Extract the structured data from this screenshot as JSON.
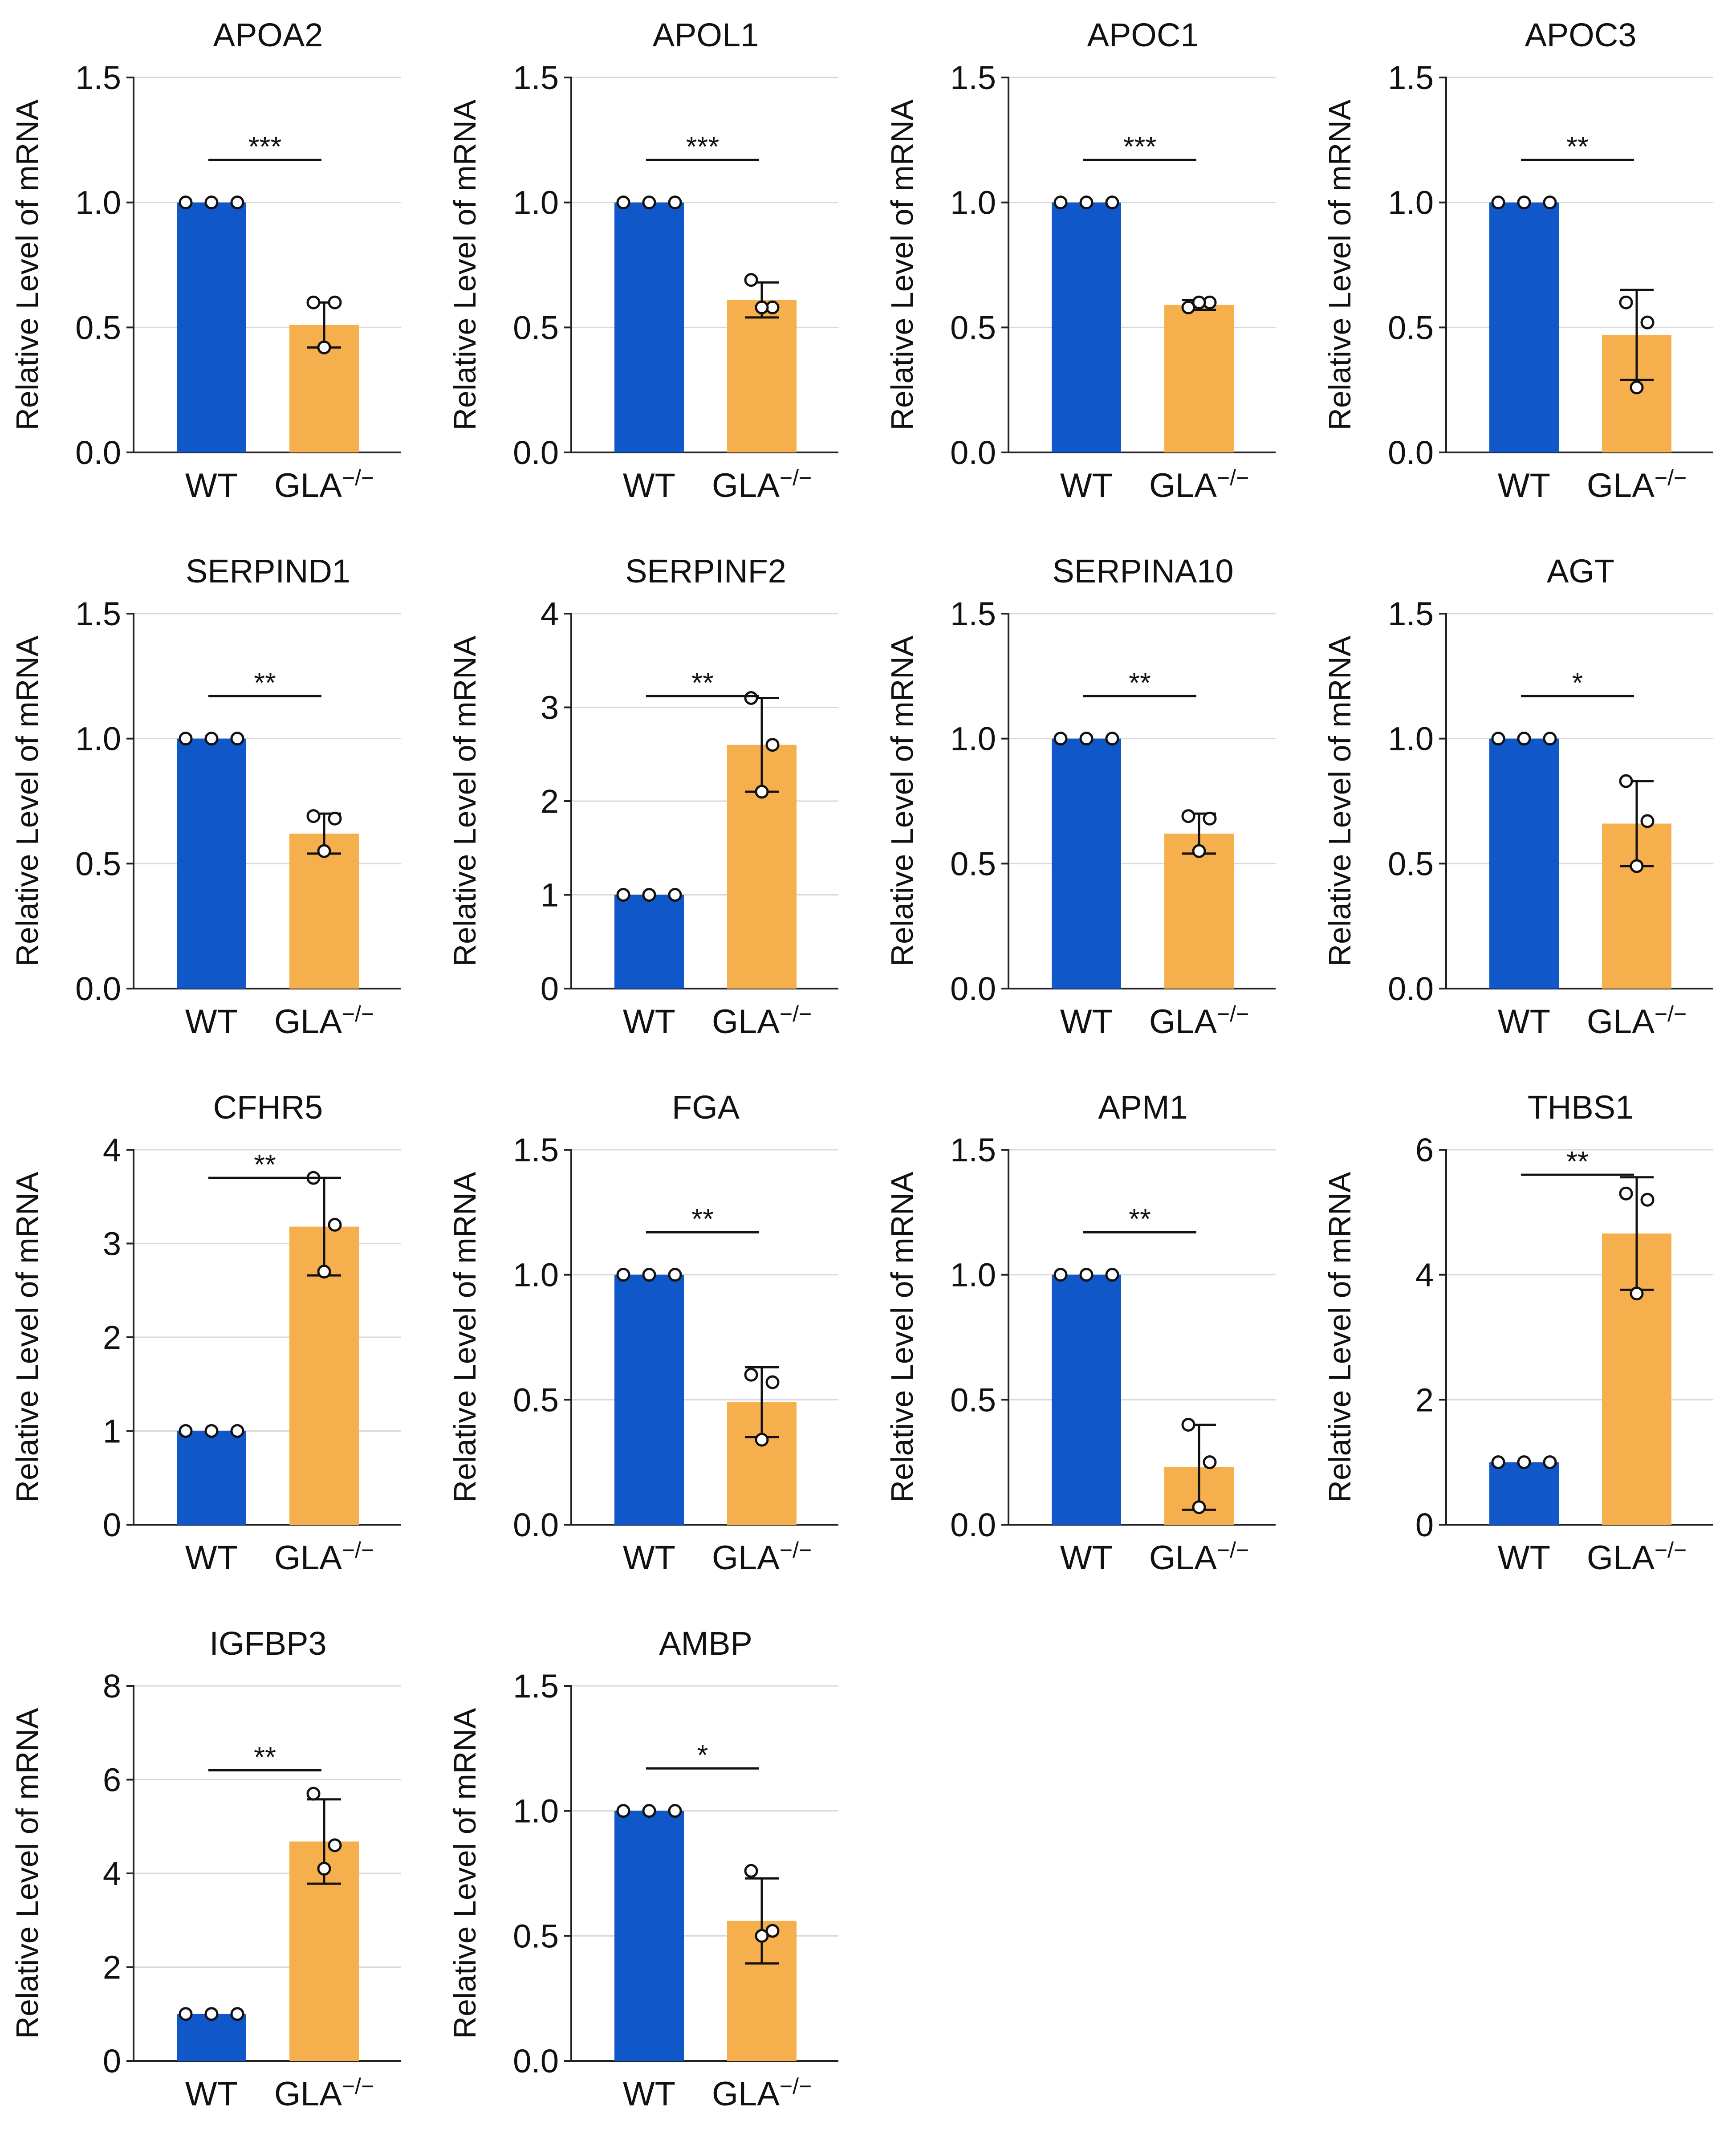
{
  "figure": {
    "y_axis_label": "Relative Level of mRNA",
    "categories": [
      "WT",
      "GLA"
    ],
    "category_superscript": "−/−",
    "colors": {
      "wt": "#1057c9",
      "gla": "#f6af4d",
      "axis": "#222222",
      "grid": "#d9d9d9"
    }
  },
  "chart_data": [
    {
      "type": "bar",
      "title": "APOA2",
      "categories": [
        "WT",
        "GLA−/−"
      ],
      "values": [
        1.0,
        0.51
      ],
      "error": [
        0.0,
        0.09
      ],
      "points": [
        [
          1.0,
          1.0,
          1.0
        ],
        [
          0.6,
          0.6,
          0.42
        ]
      ],
      "significance": "***",
      "bracket_y": 1.17,
      "ylim": [
        0,
        1.5
      ],
      "yticks": [
        0.0,
        0.5,
        1.0,
        1.5
      ],
      "tick_labels": [
        "0.0",
        "0.5",
        "1.0",
        "1.5"
      ],
      "ylabel": "Relative Level of mRNA"
    },
    {
      "type": "bar",
      "title": "APOL1",
      "categories": [
        "WT",
        "GLA−/−"
      ],
      "values": [
        1.0,
        0.61
      ],
      "error": [
        0.0,
        0.07
      ],
      "points": [
        [
          1.0,
          1.0,
          1.0
        ],
        [
          0.69,
          0.58,
          0.58
        ]
      ],
      "significance": "***",
      "bracket_y": 1.17,
      "ylim": [
        0,
        1.5
      ],
      "yticks": [
        0.0,
        0.5,
        1.0,
        1.5
      ],
      "tick_labels": [
        "0.0",
        "0.5",
        "1.0",
        "1.5"
      ],
      "ylabel": "Relative Level of mRNA"
    },
    {
      "type": "bar",
      "title": "APOC1",
      "categories": [
        "WT",
        "GLA−/−"
      ],
      "values": [
        1.0,
        0.59
      ],
      "error": [
        0.0,
        0.02
      ],
      "points": [
        [
          1.0,
          1.0,
          1.0
        ],
        [
          0.58,
          0.6,
          0.6
        ]
      ],
      "significance": "***",
      "bracket_y": 1.17,
      "ylim": [
        0,
        1.5
      ],
      "yticks": [
        0.0,
        0.5,
        1.0,
        1.5
      ],
      "tick_labels": [
        "0.0",
        "0.5",
        "1.0",
        "1.5"
      ],
      "ylabel": "Relative Level of mRNA"
    },
    {
      "type": "bar",
      "title": "APOC3",
      "categories": [
        "WT",
        "GLA−/−"
      ],
      "values": [
        1.0,
        0.47
      ],
      "error": [
        0.0,
        0.18
      ],
      "points": [
        [
          1.0,
          1.0,
          1.0
        ],
        [
          0.6,
          0.52,
          0.26
        ]
      ],
      "significance": "**",
      "bracket_y": 1.17,
      "ylim": [
        0,
        1.5
      ],
      "yticks": [
        0.0,
        0.5,
        1.0,
        1.5
      ],
      "tick_labels": [
        "0.0",
        "0.5",
        "1.0",
        "1.5"
      ],
      "ylabel": "Relative Level of mRNA"
    },
    {
      "type": "bar",
      "title": "SERPIND1",
      "categories": [
        "WT",
        "GLA−/−"
      ],
      "values": [
        1.0,
        0.62
      ],
      "error": [
        0.0,
        0.08
      ],
      "points": [
        [
          1.0,
          1.0,
          1.0
        ],
        [
          0.69,
          0.68,
          0.55
        ]
      ],
      "significance": "**",
      "bracket_y": 1.17,
      "ylim": [
        0,
        1.5
      ],
      "yticks": [
        0.0,
        0.5,
        1.0,
        1.5
      ],
      "tick_labels": [
        "0.0",
        "0.5",
        "1.0",
        "1.5"
      ],
      "ylabel": "Relative Level of mRNA"
    },
    {
      "type": "bar",
      "title": "SERPINF2",
      "categories": [
        "WT",
        "GLA−/−"
      ],
      "values": [
        1.0,
        2.6
      ],
      "error": [
        0.0,
        0.5
      ],
      "points": [
        [
          1.0,
          1.0,
          1.0
        ],
        [
          3.1,
          2.6,
          2.1
        ]
      ],
      "significance": "**",
      "bracket_y": 3.12,
      "ylim": [
        0,
        4
      ],
      "yticks": [
        0,
        1,
        2,
        3,
        4
      ],
      "tick_labels": [
        "0",
        "1",
        "2",
        "3",
        "4"
      ],
      "ylabel": "Relative Level of mRNA"
    },
    {
      "type": "bar",
      "title": "SERPINA10",
      "categories": [
        "WT",
        "GLA−/−"
      ],
      "values": [
        1.0,
        0.62
      ],
      "error": [
        0.0,
        0.08
      ],
      "points": [
        [
          1.0,
          1.0,
          1.0
        ],
        [
          0.69,
          0.68,
          0.55
        ]
      ],
      "significance": "**",
      "bracket_y": 1.17,
      "ylim": [
        0,
        1.5
      ],
      "yticks": [
        0.0,
        0.5,
        1.0,
        1.5
      ],
      "tick_labels": [
        "0.0",
        "0.5",
        "1.0",
        "1.5"
      ],
      "ylabel": "Relative Level of mRNA"
    },
    {
      "type": "bar",
      "title": "AGT",
      "categories": [
        "WT",
        "GLA−/−"
      ],
      "values": [
        1.0,
        0.66
      ],
      "error": [
        0.0,
        0.17
      ],
      "points": [
        [
          1.0,
          1.0,
          1.0
        ],
        [
          0.83,
          0.67,
          0.49
        ]
      ],
      "significance": "*",
      "bracket_y": 1.17,
      "ylim": [
        0,
        1.5
      ],
      "yticks": [
        0.0,
        0.5,
        1.0,
        1.5
      ],
      "tick_labels": [
        "0.0",
        "0.5",
        "1.0",
        "1.5"
      ],
      "ylabel": "Relative Level of mRNA"
    },
    {
      "type": "bar",
      "title": "CFHR5",
      "categories": [
        "WT",
        "GLA−/−"
      ],
      "values": [
        1.0,
        3.18
      ],
      "error": [
        0.0,
        0.52
      ],
      "points": [
        [
          1.0,
          1.0,
          1.0
        ],
        [
          3.7,
          3.2,
          2.7
        ]
      ],
      "significance": "**",
      "bracket_y": 3.7,
      "ylim": [
        0,
        4
      ],
      "yticks": [
        0,
        1,
        2,
        3,
        4
      ],
      "tick_labels": [
        "0",
        "1",
        "2",
        "3",
        "4"
      ],
      "ylabel": "Relative Level of mRNA"
    },
    {
      "type": "bar",
      "title": "FGA",
      "categories": [
        "WT",
        "GLA−/−"
      ],
      "values": [
        1.0,
        0.49
      ],
      "error": [
        0.0,
        0.14
      ],
      "points": [
        [
          1.0,
          1.0,
          1.0
        ],
        [
          0.6,
          0.57,
          0.34
        ]
      ],
      "significance": "**",
      "bracket_y": 1.17,
      "ylim": [
        0,
        1.5
      ],
      "yticks": [
        0.0,
        0.5,
        1.0,
        1.5
      ],
      "tick_labels": [
        "0.0",
        "0.5",
        "1.0",
        "1.5"
      ],
      "ylabel": "Relative Level of mRNA"
    },
    {
      "type": "bar",
      "title": "APM1",
      "categories": [
        "WT",
        "GLA−/−"
      ],
      "values": [
        1.0,
        0.23
      ],
      "error": [
        0.0,
        0.17
      ],
      "points": [
        [
          1.0,
          1.0,
          1.0
        ],
        [
          0.4,
          0.25,
          0.07
        ]
      ],
      "significance": "**",
      "bracket_y": 1.17,
      "ylim": [
        0,
        1.5
      ],
      "yticks": [
        0.0,
        0.5,
        1.0,
        1.5
      ],
      "tick_labels": [
        "0.0",
        "0.5",
        "1.0",
        "1.5"
      ],
      "ylabel": "Relative Level of mRNA"
    },
    {
      "type": "bar",
      "title": "THBS1",
      "categories": [
        "WT",
        "GLA−/−"
      ],
      "values": [
        1.0,
        4.66
      ],
      "error": [
        0.0,
        0.9
      ],
      "points": [
        [
          1.0,
          1.0,
          1.0
        ],
        [
          5.3,
          5.2,
          3.7
        ]
      ],
      "significance": "**",
      "bracket_y": 5.6,
      "ylim": [
        0,
        6
      ],
      "yticks": [
        0,
        2,
        4,
        6
      ],
      "tick_labels": [
        "0",
        "2",
        "4",
        "6"
      ],
      "ylabel": "Relative Level of mRNA"
    },
    {
      "type": "bar",
      "title": "IGFBP3",
      "categories": [
        "WT",
        "GLA−/−"
      ],
      "values": [
        1.0,
        4.68
      ],
      "error": [
        0.0,
        0.9
      ],
      "points": [
        [
          1.0,
          1.0,
          1.0
        ],
        [
          5.7,
          4.6,
          4.1
        ]
      ],
      "significance": "**",
      "bracket_y": 6.2,
      "ylim": [
        0,
        8
      ],
      "yticks": [
        0,
        2,
        4,
        6,
        8
      ],
      "tick_labels": [
        "0",
        "2",
        "4",
        "6",
        "8"
      ],
      "ylabel": "Relative Level of mRNA"
    },
    {
      "type": "bar",
      "title": "AMBP",
      "categories": [
        "WT",
        "GLA−/−"
      ],
      "values": [
        1.0,
        0.56
      ],
      "error": [
        0.0,
        0.17
      ],
      "points": [
        [
          1.0,
          1.0,
          1.0
        ],
        [
          0.76,
          0.52,
          0.5
        ]
      ],
      "significance": "*",
      "bracket_y": 1.17,
      "ylim": [
        0,
        1.5
      ],
      "yticks": [
        0.0,
        0.5,
        1.0,
        1.5
      ],
      "tick_labels": [
        "0.0",
        "0.5",
        "1.0",
        "1.5"
      ],
      "ylabel": "Relative Level of mRNA"
    }
  ]
}
